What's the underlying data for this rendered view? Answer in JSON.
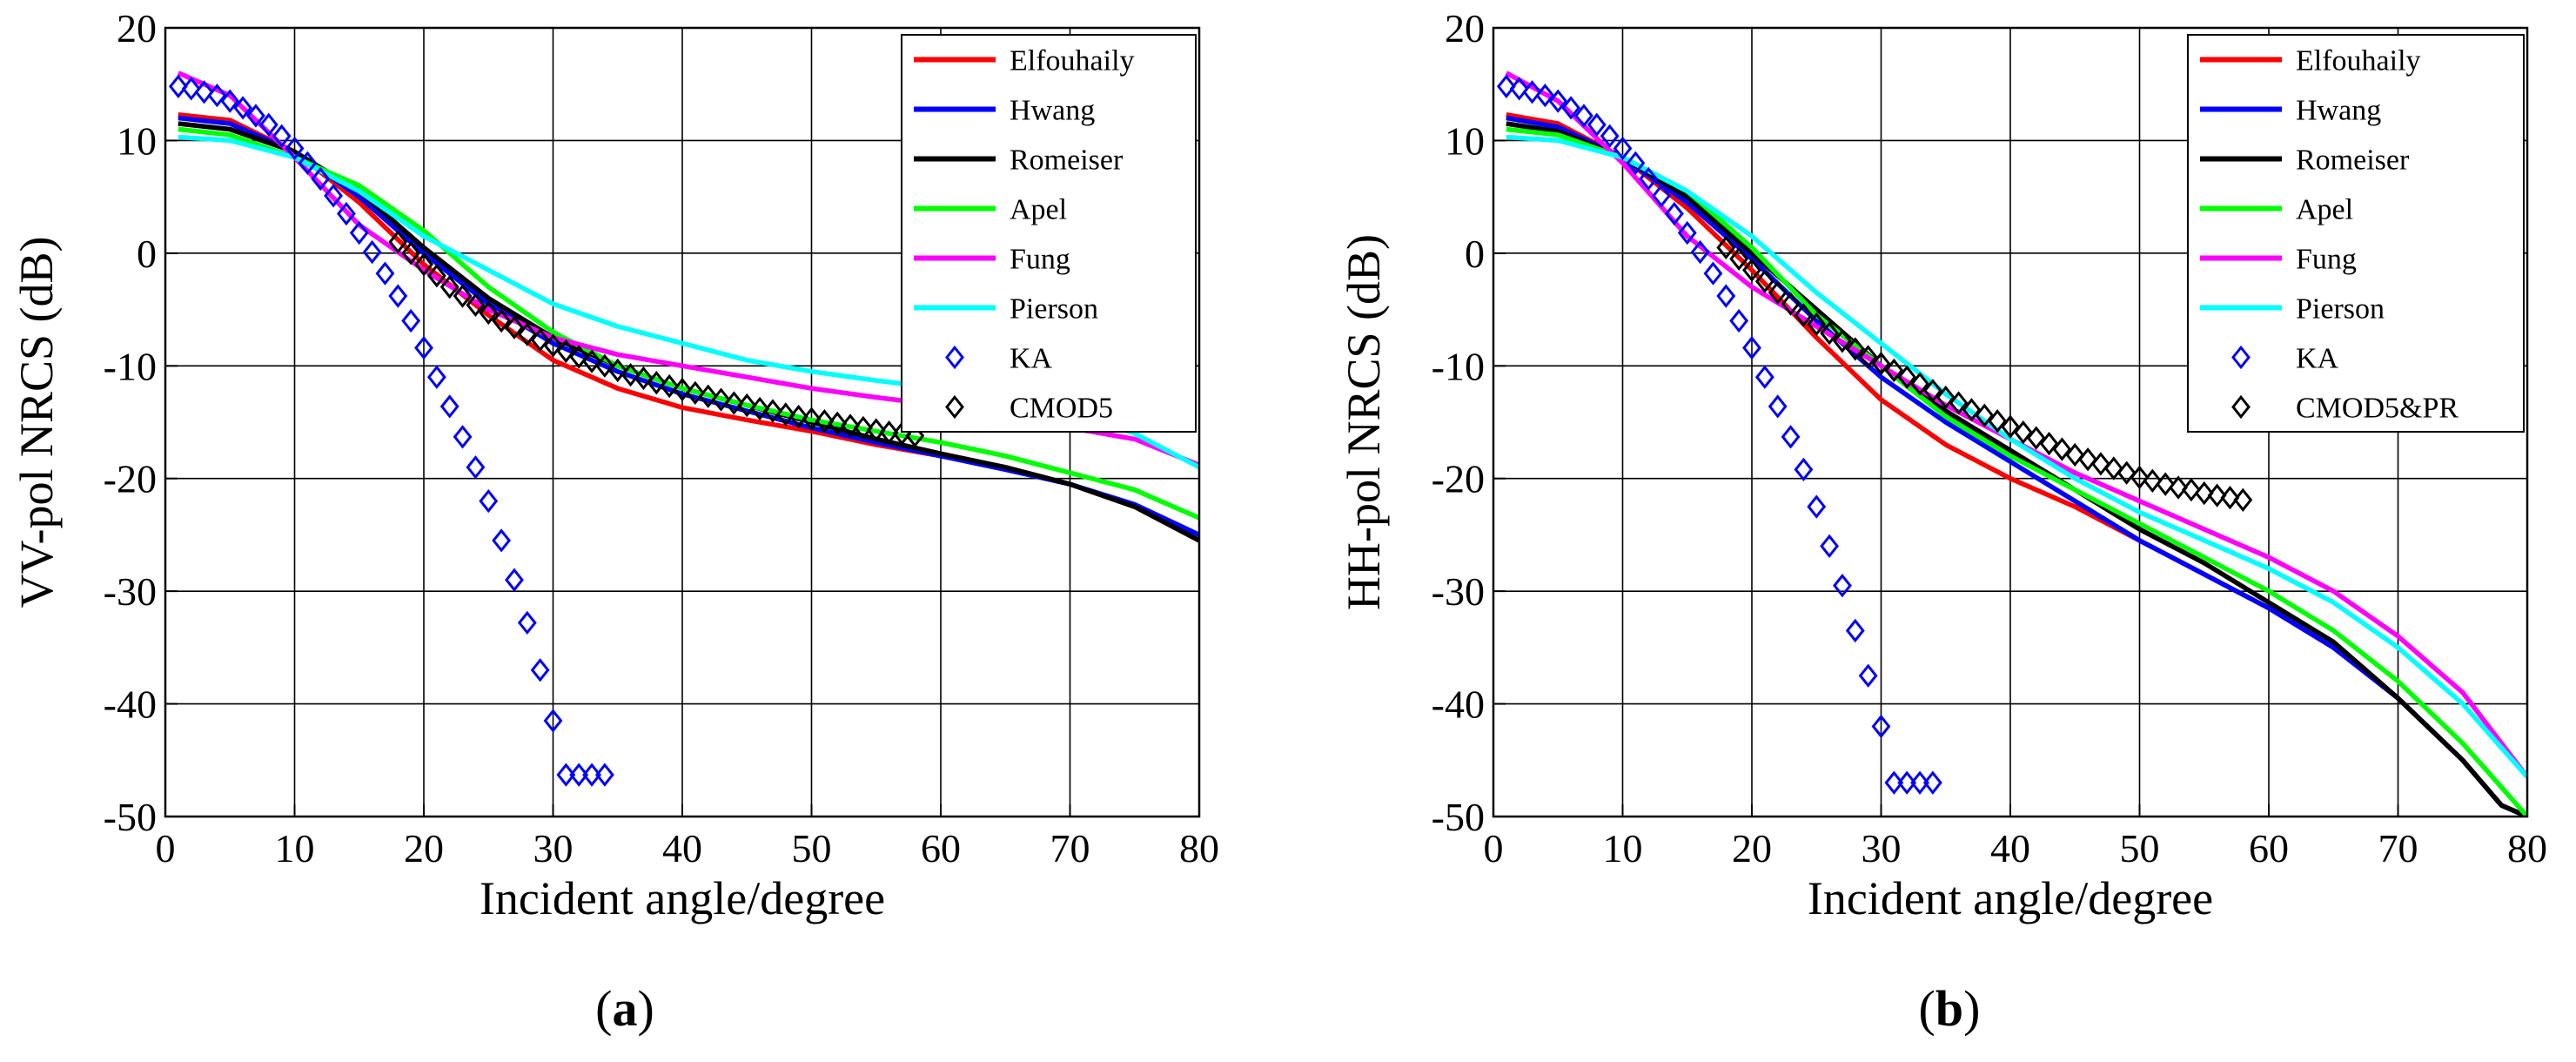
{
  "figure": {
    "caption_a": {
      "open": "(",
      "letter": "a",
      "close": ")"
    },
    "caption_b": {
      "open": "(",
      "letter": "b",
      "close": ")"
    }
  },
  "colors": {
    "Elfouhaily": "#ff0000",
    "Hwang": "#0000ff",
    "Romeiser": "#000000",
    "Apel": "#00ff00",
    "Fung": "#ff00ff",
    "Pierson": "#00ffff",
    "KA": "#0000ff",
    "CMOD": "#000000"
  },
  "chart_data": [
    {
      "type": "line",
      "panel": "a",
      "title": "",
      "xlabel": "Incident angle/degree",
      "ylabel": "VV-pol NRCS (dB)",
      "xlim": [
        0,
        80
      ],
      "ylim": [
        -50,
        20
      ],
      "xticks": [
        0,
        10,
        20,
        30,
        40,
        50,
        60,
        70,
        80
      ],
      "yticks": [
        20,
        10,
        0,
        -10,
        -20,
        -30,
        -40,
        -50
      ],
      "grid": true,
      "legend_position": "top-right",
      "series": [
        {
          "name": "Elfouhaily",
          "style": "line",
          "x": [
            1,
            5,
            10,
            15,
            20,
            25,
            30,
            35,
            40,
            45,
            50,
            55,
            60,
            65,
            70,
            75,
            80
          ],
          "values": [
            12.3,
            11.8,
            9.0,
            4.5,
            -1.0,
            -5.5,
            -9.5,
            -12.0,
            -13.7,
            -14.8,
            -15.8,
            -17.0,
            -18.0,
            -19.0,
            -20.5,
            -22.5,
            -25.5
          ]
        },
        {
          "name": "Hwang",
          "style": "line",
          "x": [
            1,
            5,
            10,
            15,
            20,
            25,
            30,
            35,
            40,
            45,
            50,
            55,
            60,
            65,
            70,
            75,
            80
          ],
          "values": [
            12.0,
            11.5,
            9.0,
            5.0,
            0.0,
            -4.5,
            -8.0,
            -10.5,
            -12.5,
            -14.0,
            -15.5,
            -16.8,
            -18.0,
            -19.2,
            -20.5,
            -22.3,
            -25.0
          ]
        },
        {
          "name": "Romeiser",
          "style": "line",
          "x": [
            1,
            5,
            10,
            15,
            20,
            25,
            30,
            35,
            40,
            45,
            50,
            55,
            60,
            65,
            70,
            75,
            80
          ],
          "values": [
            11.5,
            11.0,
            9.0,
            5.5,
            0.5,
            -4.0,
            -7.5,
            -10.0,
            -12.0,
            -13.5,
            -15.0,
            -16.5,
            -17.8,
            -19.0,
            -20.5,
            -22.5,
            -25.5
          ]
        },
        {
          "name": "Apel",
          "style": "line",
          "x": [
            1,
            5,
            10,
            15,
            20,
            25,
            30,
            35,
            40,
            45,
            50,
            55,
            60,
            65,
            70,
            75,
            80
          ],
          "values": [
            11.0,
            10.5,
            8.5,
            6.0,
            2.0,
            -3.0,
            -7.0,
            -10.0,
            -12.0,
            -13.5,
            -14.8,
            -15.8,
            -16.8,
            -18.0,
            -19.5,
            -21.0,
            -23.5
          ]
        },
        {
          "name": "Fung",
          "style": "line",
          "x": [
            1,
            5,
            10,
            15,
            20,
            25,
            30,
            35,
            40,
            45,
            50,
            55,
            60,
            65,
            70,
            75,
            80
          ],
          "values": [
            16.0,
            14.0,
            8.5,
            2.5,
            -1.5,
            -5.0,
            -7.5,
            -9.0,
            -10.0,
            -11.0,
            -12.0,
            -12.8,
            -13.5,
            -14.5,
            -15.5,
            -16.5,
            -18.8
          ]
        },
        {
          "name": "Pierson",
          "style": "line",
          "x": [
            1,
            5,
            10,
            15,
            20,
            25,
            30,
            35,
            40,
            45,
            50,
            55,
            60,
            65,
            70,
            75,
            80
          ],
          "values": [
            10.3,
            10.0,
            8.5,
            5.5,
            1.5,
            -1.5,
            -4.5,
            -6.5,
            -8.0,
            -9.5,
            -10.5,
            -11.3,
            -12.0,
            -13.0,
            -14.0,
            -16.0,
            -19.0
          ]
        },
        {
          "name": "KA",
          "style": "diamond",
          "x": [
            1,
            2,
            3,
            4,
            5,
            6,
            7,
            8,
            9,
            10,
            11,
            12,
            13,
            14,
            15,
            16,
            17,
            18,
            19,
            20,
            21,
            22,
            23,
            24,
            25,
            26,
            27,
            28,
            29,
            30,
            31,
            32,
            33,
            34
          ],
          "values": [
            14.8,
            14.6,
            14.3,
            14.0,
            13.5,
            12.9,
            12.2,
            11.4,
            10.4,
            9.3,
            8.0,
            6.6,
            5.1,
            3.5,
            1.8,
            0.1,
            -1.8,
            -3.8,
            -6.0,
            -8.4,
            -11.0,
            -13.6,
            -16.3,
            -19.0,
            -22.0,
            -25.5,
            -29.0,
            -32.8,
            -37.0,
            -41.5,
            -46.3,
            -46.3,
            -46.3,
            -46.3
          ]
        },
        {
          "name": "CMOD5",
          "style": "diamond",
          "x": [
            18,
            19,
            20,
            21,
            22,
            23,
            24,
            25,
            26,
            27,
            28,
            29,
            30,
            31,
            32,
            33,
            34,
            35,
            36,
            37,
            38,
            39,
            40,
            41,
            42,
            43,
            44,
            45,
            46,
            47,
            48,
            49,
            50,
            51,
            52,
            53,
            54,
            55,
            56,
            57,
            58
          ],
          "values": [
            1.0,
            0.0,
            -1.0,
            -2.0,
            -3.0,
            -3.8,
            -4.6,
            -5.3,
            -6.0,
            -6.6,
            -7.2,
            -7.7,
            -8.2,
            -8.7,
            -9.2,
            -9.6,
            -10.0,
            -10.4,
            -10.8,
            -11.1,
            -11.5,
            -11.8,
            -12.1,
            -12.4,
            -12.7,
            -13.0,
            -13.3,
            -13.5,
            -13.8,
            -14.0,
            -14.3,
            -14.5,
            -14.7,
            -14.9,
            -15.1,
            -15.3,
            -15.5,
            -15.7,
            -15.9,
            -16.0,
            -16.2
          ]
        }
      ],
      "legend": [
        "Elfouhaily",
        "Hwang",
        "Romeiser",
        "Apel",
        "Fung",
        "Pierson",
        "KA",
        "CMOD5"
      ]
    },
    {
      "type": "line",
      "panel": "b",
      "title": "",
      "xlabel": "Incident angle/degree",
      "ylabel": "HH-pol NRCS (dB)",
      "xlim": [
        0,
        80
      ],
      "ylim": [
        -50,
        20
      ],
      "xticks": [
        0,
        10,
        20,
        30,
        40,
        50,
        60,
        70,
        80
      ],
      "yticks": [
        20,
        10,
        0,
        -10,
        -20,
        -30,
        -40,
        -50
      ],
      "grid": true,
      "legend_position": "top-right",
      "series": [
        {
          "name": "Elfouhaily",
          "style": "line",
          "x": [
            1,
            5,
            10,
            15,
            20,
            25,
            30,
            35,
            40,
            45,
            50,
            55,
            60,
            65,
            70,
            75,
            78,
            80
          ],
          "values": [
            12.3,
            11.5,
            8.5,
            4.0,
            -1.5,
            -7.5,
            -13.0,
            -17.0,
            -20.0,
            -22.5,
            -25.5,
            -28.5,
            -31.5,
            -35.0,
            -39.5,
            -45.0,
            -49.0,
            -50.0
          ]
        },
        {
          "name": "Hwang",
          "style": "line",
          "x": [
            1,
            5,
            10,
            15,
            20,
            25,
            30,
            35,
            40,
            45,
            50,
            55,
            60,
            65,
            70,
            75,
            78,
            80
          ],
          "values": [
            12.0,
            11.2,
            8.5,
            4.5,
            -0.5,
            -6.0,
            -11.0,
            -15.0,
            -18.5,
            -22.0,
            -25.5,
            -28.5,
            -31.5,
            -35.0,
            -39.5,
            -45.0,
            -49.0,
            -50.0
          ]
        },
        {
          "name": "Romeiser",
          "style": "line",
          "x": [
            1,
            5,
            10,
            15,
            20,
            25,
            30,
            35,
            40,
            45,
            50,
            55,
            60,
            65,
            70,
            75,
            78,
            80
          ],
          "values": [
            11.5,
            10.8,
            8.5,
            5.0,
            0.0,
            -5.0,
            -10.0,
            -14.0,
            -17.5,
            -21.0,
            -24.5,
            -27.5,
            -31.0,
            -34.5,
            -39.5,
            -45.0,
            -49.0,
            -50.0
          ]
        },
        {
          "name": "Apel",
          "style": "line",
          "x": [
            1,
            5,
            10,
            15,
            20,
            25,
            30,
            35,
            40,
            45,
            50,
            55,
            60,
            65,
            70,
            75,
            80
          ],
          "values": [
            11.0,
            10.5,
            8.5,
            5.5,
            0.5,
            -5.5,
            -10.0,
            -14.5,
            -18.0,
            -21.0,
            -24.0,
            -27.0,
            -30.0,
            -33.5,
            -38.0,
            -43.5,
            -50.0
          ]
        },
        {
          "name": "Fung",
          "style": "line",
          "x": [
            1,
            5,
            10,
            15,
            20,
            25,
            30,
            35,
            40,
            45,
            50,
            55,
            60,
            65,
            70,
            75,
            80
          ],
          "values": [
            16.0,
            13.5,
            8.0,
            1.5,
            -3.0,
            -6.5,
            -10.0,
            -13.5,
            -16.5,
            -19.5,
            -22.0,
            -24.5,
            -27.0,
            -30.0,
            -34.0,
            -39.0,
            -46.5
          ]
        },
        {
          "name": "Pierson",
          "style": "line",
          "x": [
            1,
            5,
            10,
            15,
            20,
            25,
            30,
            35,
            40,
            45,
            50,
            55,
            60,
            65,
            70,
            75,
            80
          ],
          "values": [
            10.3,
            10.0,
            8.5,
            5.5,
            1.5,
            -3.5,
            -8.0,
            -12.5,
            -16.5,
            -20.0,
            -23.0,
            -25.5,
            -28.0,
            -31.0,
            -35.0,
            -40.0,
            -46.5
          ]
        },
        {
          "name": "KA",
          "style": "diamond",
          "x": [
            1,
            2,
            3,
            4,
            5,
            6,
            7,
            8,
            9,
            10,
            11,
            12,
            13,
            14,
            15,
            16,
            17,
            18,
            19,
            20,
            21,
            22,
            23,
            24,
            25,
            26,
            27,
            28,
            29,
            30,
            31,
            32,
            33,
            34
          ],
          "values": [
            14.8,
            14.6,
            14.3,
            14.0,
            13.5,
            12.9,
            12.2,
            11.4,
            10.4,
            9.3,
            8.0,
            6.6,
            5.1,
            3.5,
            1.8,
            0.1,
            -1.8,
            -3.8,
            -6.0,
            -8.4,
            -11.0,
            -13.6,
            -16.3,
            -19.2,
            -22.5,
            -26.0,
            -29.5,
            -33.5,
            -37.5,
            -42.0,
            -47.0,
            -47.0,
            -47.0,
            -47.0
          ]
        },
        {
          "name": "CMOD5&PR",
          "style": "diamond",
          "x": [
            18,
            19,
            20,
            21,
            22,
            23,
            24,
            25,
            26,
            27,
            28,
            29,
            30,
            31,
            32,
            33,
            34,
            35,
            36,
            37,
            38,
            39,
            40,
            41,
            42,
            43,
            44,
            45,
            46,
            47,
            48,
            49,
            50,
            51,
            52,
            53,
            54,
            55,
            56,
            57,
            58
          ],
          "values": [
            0.5,
            -0.5,
            -1.5,
            -2.5,
            -3.5,
            -4.5,
            -5.5,
            -6.3,
            -7.1,
            -7.8,
            -8.5,
            -9.2,
            -9.8,
            -10.4,
            -11.0,
            -11.6,
            -12.2,
            -12.8,
            -13.3,
            -13.9,
            -14.4,
            -14.9,
            -15.4,
            -15.9,
            -16.4,
            -16.9,
            -17.4,
            -17.9,
            -18.3,
            -18.7,
            -19.1,
            -19.5,
            -19.9,
            -20.2,
            -20.5,
            -20.8,
            -21.0,
            -21.3,
            -21.5,
            -21.7,
            -21.9
          ]
        }
      ],
      "legend": [
        "Elfouhaily",
        "Hwang",
        "Romeiser",
        "Apel",
        "Fung",
        "Pierson",
        "KA",
        "CMOD5&PR"
      ]
    }
  ]
}
